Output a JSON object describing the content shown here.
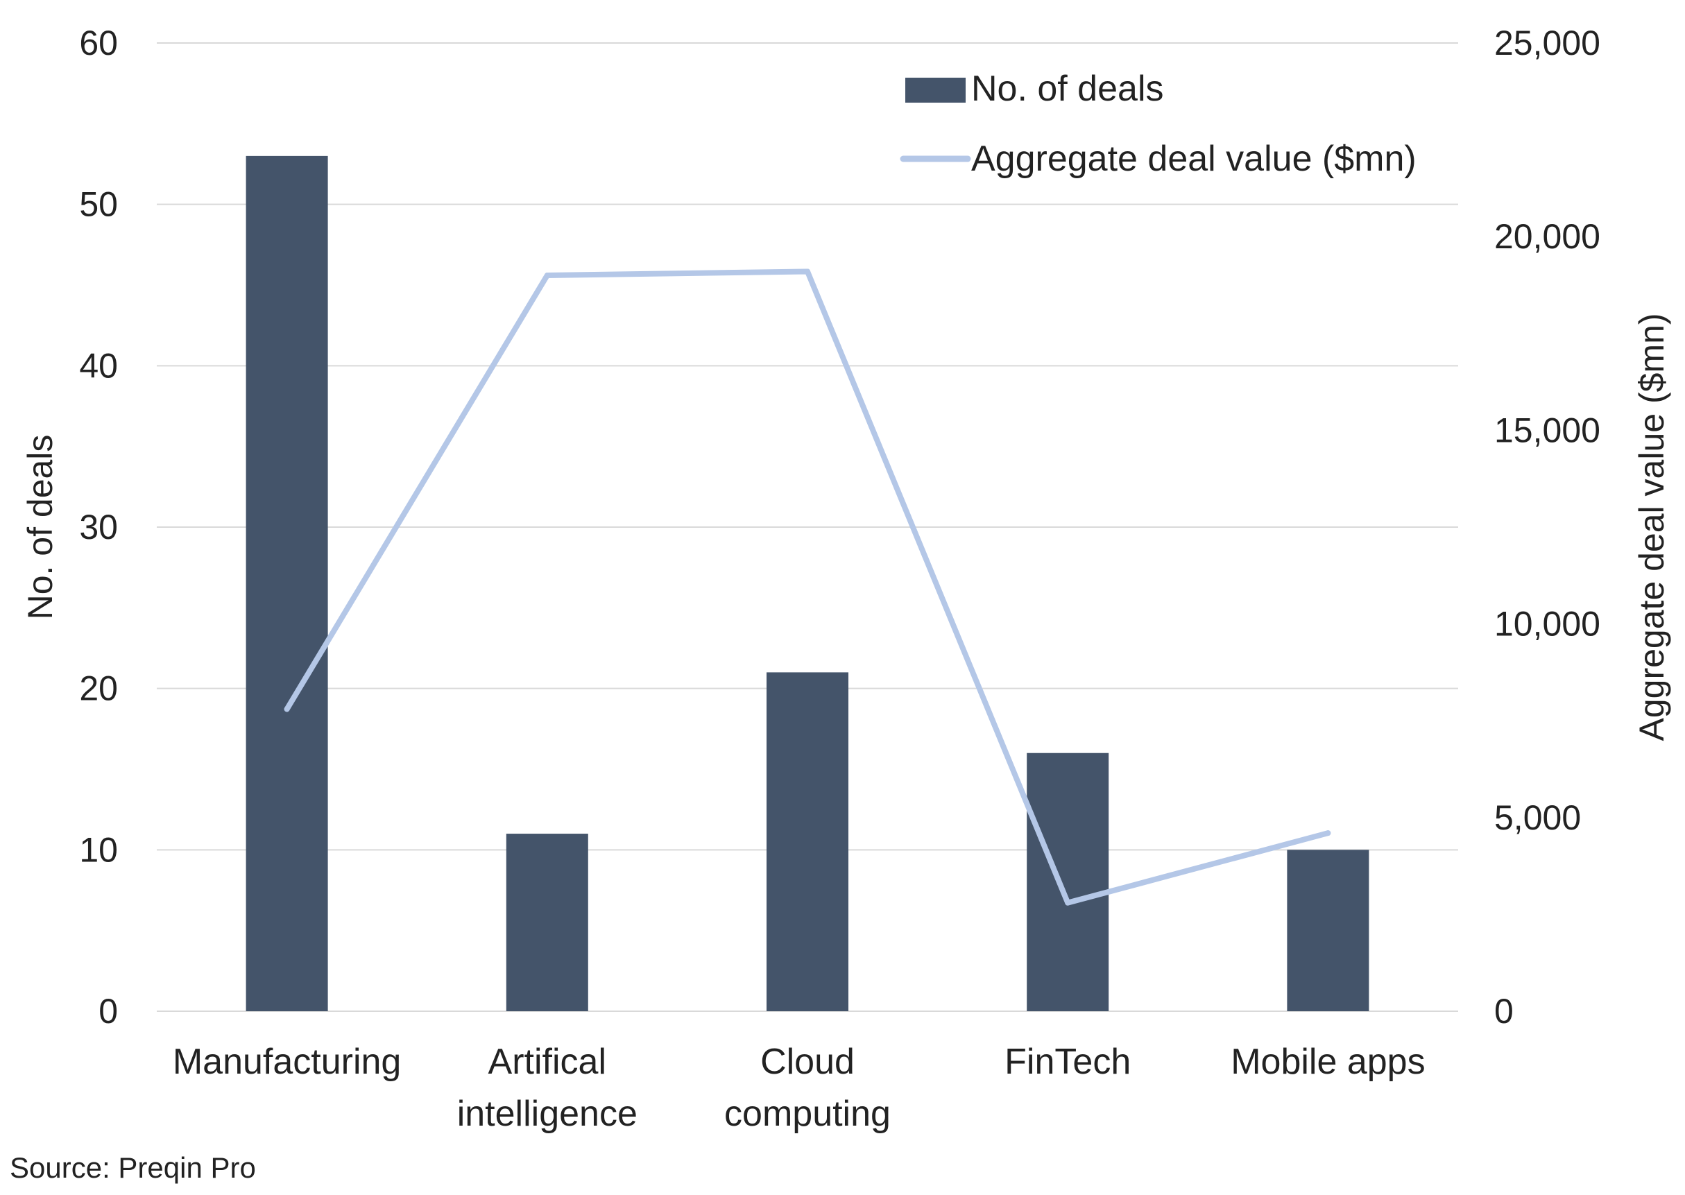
{
  "chart_data": {
    "type": "bar",
    "categories": [
      [
        "Manufacturing"
      ],
      [
        "Artifical",
        "intelligence"
      ],
      [
        "Cloud",
        "computing"
      ],
      [
        "FinTech"
      ],
      [
        "Mobile apps"
      ]
    ],
    "series": [
      {
        "name": "No. of deals",
        "type": "bar",
        "axis": "left",
        "values": [
          53,
          11,
          21,
          16,
          10
        ]
      },
      {
        "name": "Aggregate deal value ($mn)",
        "type": "line",
        "axis": "right",
        "values": [
          7800,
          19000,
          19100,
          2800,
          4600
        ]
      }
    ],
    "y_left": {
      "label": "No. of deals",
      "lim": [
        0,
        60
      ],
      "ticks": [
        0,
        10,
        20,
        30,
        40,
        50,
        60
      ],
      "tick_labels": [
        "0",
        "10",
        "20",
        "30",
        "40",
        "50",
        "60"
      ]
    },
    "y_right": {
      "label": "Aggregate deal value ($mn)",
      "lim": [
        0,
        25000
      ],
      "ticks": [
        0,
        5000,
        10000,
        15000,
        20000,
        25000
      ],
      "tick_labels": [
        "0",
        "5,000",
        "10,000",
        "15,000",
        "20,000",
        "25,000"
      ]
    },
    "grid": true,
    "legend": "top-right",
    "source": "Source: Preqin Pro"
  },
  "colors": {
    "bar": "#44546a",
    "line": "#b4c7e7",
    "grid": "#d9d9d9"
  }
}
